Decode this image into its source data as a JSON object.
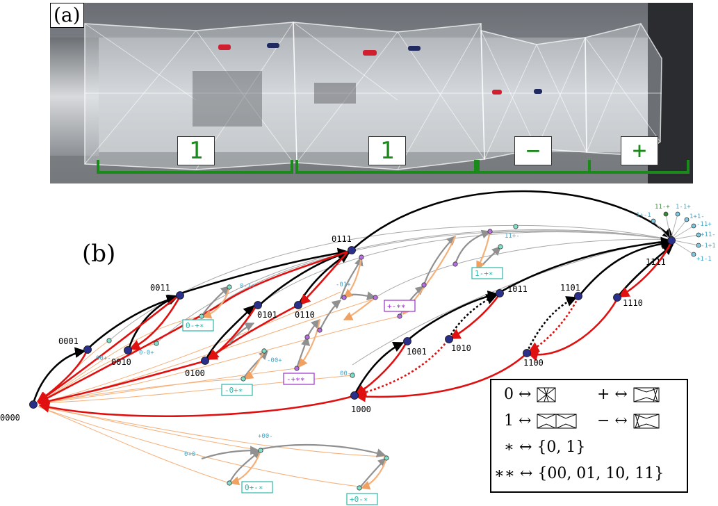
{
  "panel_a": {
    "label": "(a)",
    "segments": [
      "1",
      "1",
      "−",
      "+"
    ]
  },
  "panel_b": {
    "label": "(b)",
    "nodes": [
      "0000",
      "0001",
      "0010",
      "0011",
      "0100",
      "0101",
      "0110",
      "0111",
      "1000",
      "1001",
      "1010",
      "1011",
      "1100",
      "1101",
      "1110",
      "1111"
    ],
    "star_nodes": [
      "11-+",
      "1-1+",
      "1+-1",
      "1+1-",
      "-11+",
      "+11-",
      "-1+1",
      "+1-1",
      "0-1+",
      "00+-",
      "0-0+",
      "-01+",
      "11+-",
      "-00+",
      "00-+",
      "0+0-",
      "+00-"
    ],
    "families": [
      {
        "label": "0-+∗",
        "color": "#2ab7a9"
      },
      {
        "label": "-0+∗",
        "color": "#2ab7a9"
      },
      {
        "label": "-+∗∗",
        "color": "#9b30c8"
      },
      {
        "label": "+-∗∗",
        "color": "#9b30c8"
      },
      {
        "label": "1-+∗",
        "color": "#2ab7a9"
      },
      {
        "label": "0+-∗",
        "color": "#2ab7a9"
      },
      {
        "label": "+0-∗",
        "color": "#2ab7a9"
      }
    ]
  },
  "legend": {
    "row1_left": "0 ↔",
    "row1_right": "+ ↔",
    "row2_left": "1 ↔",
    "row2_right": "− ↔",
    "row3": "∗ ↔ {0, 1}",
    "row4": "∗∗ ↔ {00, 01, 10, 11}"
  },
  "colors": {
    "forward": "#000000",
    "backward": "#e01010",
    "minor": "#a0a0a0",
    "orange": "#f5b07a",
    "node": "#2a2f8a",
    "segment_text": "#1a8a1a",
    "bracket": "#1a8a1a"
  }
}
